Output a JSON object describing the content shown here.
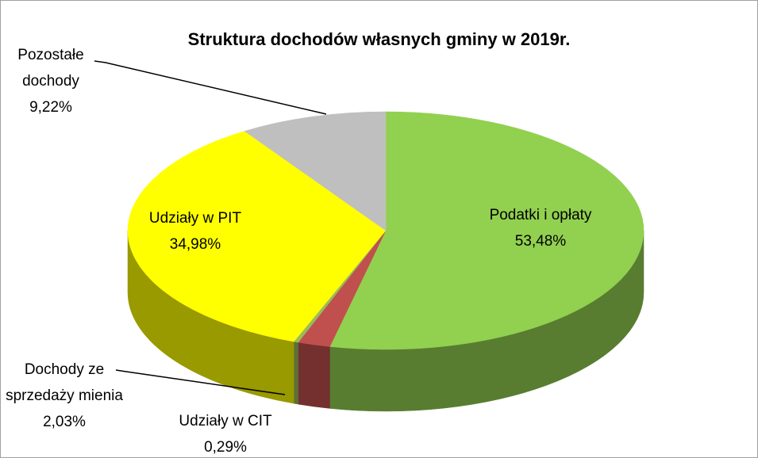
{
  "chart_data": {
    "type": "pie",
    "title": "Struktura dochodów własnych gminy w 2019r.",
    "categories": [
      "Podatki i opłaty",
      "Dochody ze sprzedaży mienia",
      "Udziały w CIT",
      "Udziały w PIT",
      "Pozostałe dochody"
    ],
    "values": [
      53.48,
      2.03,
      0.29,
      34.98,
      9.22
    ],
    "value_labels": [
      "53,48%",
      "2,03%",
      "0,29%",
      "34,98%",
      "9,22%"
    ],
    "colors": [
      "#92d050",
      "#c0504d",
      "#9bbb59",
      "#ffff00",
      "#bfbfbf"
    ]
  }
}
